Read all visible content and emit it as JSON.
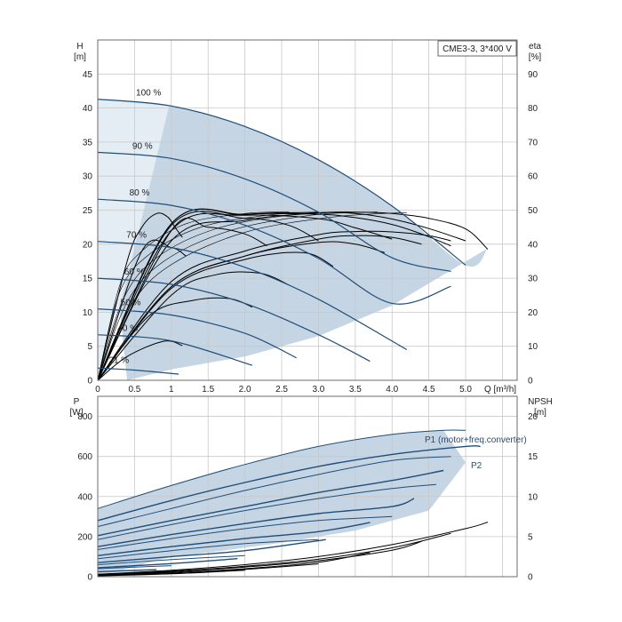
{
  "chart_data": [
    {
      "type": "line",
      "id": "qh",
      "legend": "CME3-3, 3*400 V",
      "ylabel_left": "H",
      "ylabel_left_unit": "[m]",
      "ylabel_right": "eta",
      "ylabel_right_unit": "[%]",
      "xlabel": "Q [m³/h]",
      "xlim": [
        0,
        5.7
      ],
      "ylim_left": [
        0,
        50
      ],
      "ylim_right": [
        0,
        100
      ],
      "xticks": [
        0,
        0.5,
        1.0,
        1.5,
        2.0,
        2.5,
        3.0,
        3.5,
        4.0,
        4.5,
        5.0
      ],
      "xtick_labels": [
        "0",
        "0.5",
        "1",
        "1.5",
        "2.0",
        "2.5",
        "3.0",
        "3.5",
        "4.0",
        "4.5",
        "5.0"
      ],
      "yticks_left": [
        0,
        5,
        10,
        15,
        20,
        25,
        30,
        35,
        40,
        45
      ],
      "yticks_right": [
        0,
        10,
        20,
        30,
        40,
        50,
        60,
        70,
        80,
        90
      ],
      "grid": true,
      "colors": {
        "curve": "#1f4e79",
        "eta": "#000000",
        "area": "#c5d5e4",
        "grid": "#c8c8c8"
      },
      "speed_curves": [
        {
          "label": "100 %",
          "x": [
            0,
            1.0,
            2.0,
            3.0,
            4.0,
            5.0,
            5.3
          ],
          "y": [
            41.3,
            40.3,
            37.3,
            32.4,
            25.6,
            16.9,
            19.4
          ]
        },
        {
          "label": "90 %",
          "x": [
            0,
            1.0,
            2.0,
            3.0,
            4.0,
            4.8
          ],
          "y": [
            33.5,
            32.6,
            29.6,
            24.7,
            18.0,
            16.0
          ]
        },
        {
          "label": "80 %",
          "x": [
            0,
            1.0,
            2.0,
            3.0,
            4.0,
            4.8
          ],
          "y": [
            26.6,
            25.7,
            22.8,
            17.9,
            11.3,
            13.8
          ]
        },
        {
          "label": "70 %",
          "x": [
            0,
            1.0,
            2.0,
            3.0,
            4.2
          ],
          "y": [
            20.4,
            19.5,
            16.6,
            11.9,
            4.5
          ]
        },
        {
          "label": "60 %",
          "x": [
            0,
            1.0,
            2.0,
            3.0,
            3.7
          ],
          "y": [
            15.0,
            14.1,
            11.3,
            6.7,
            2.8
          ]
        },
        {
          "label": "50 %",
          "x": [
            0,
            1.0,
            2.0,
            2.7
          ],
          "y": [
            10.5,
            9.6,
            6.9,
            3.3
          ]
        },
        {
          "label": "40 %",
          "x": [
            0,
            1.0,
            2.1
          ],
          "y": [
            6.7,
            5.8,
            2.2
          ]
        },
        {
          "label": "21 %",
          "x": [
            0,
            0.5,
            1.1
          ],
          "y": [
            1.8,
            1.5,
            0.9
          ]
        }
      ],
      "operating_area": {
        "x": [
          0,
          0.97,
          5.3,
          5.3,
          4.0,
          3.0,
          2.0,
          1.0,
          0.4
        ],
        "y": [
          41.3,
          40.3,
          19.4,
          19.4,
          11.0,
          6.5,
          3.5,
          1.6,
          0
        ]
      },
      "eta_curves": [
        {
          "x": [
            0,
            0.4,
            0.6,
            0.8,
            0.95,
            1.05,
            1.15
          ],
          "y": [
            0,
            35,
            45,
            49,
            48,
            45,
            42
          ]
        },
        {
          "x": [
            0,
            1.0,
            2.0,
            3.0,
            3.5,
            4.0,
            4.5,
            5.0,
            5.3
          ],
          "y": [
            0,
            41,
            47,
            49.2,
            49.4,
            49,
            47.6,
            44.5,
            38.5
          ]
        },
        {
          "x": [
            0,
            1.0,
            2.0,
            3.0,
            3.5,
            4.0,
            4.5,
            5.0
          ],
          "y": [
            0,
            44,
            48.6,
            49.3,
            49,
            47.4,
            44.6,
            41
          ]
        },
        {
          "x": [
            0,
            1.0,
            2.0,
            3.0,
            3.5,
            4.0,
            4.4,
            4.8
          ],
          "y": [
            0,
            46,
            48.8,
            48.8,
            47.8,
            45.8,
            43,
            39.5
          ]
        },
        {
          "x": [
            0,
            1.0,
            2.0,
            3.0,
            3.5,
            4.0
          ],
          "y": [
            0,
            46,
            48.5,
            47.5,
            44.8,
            41.5
          ]
        },
        {
          "x": [
            0,
            1.0,
            2.0,
            2.6,
            3.0
          ],
          "y": [
            0,
            45.5,
            47.6,
            45.5,
            41
          ]
        },
        {
          "x": [
            0,
            1.0,
            1.5,
            2.0,
            2.3
          ],
          "y": [
            0,
            44,
            45,
            43,
            39.5
          ]
        },
        {
          "x": [
            0,
            0.6,
            1.0,
            1.2
          ],
          "y": [
            0,
            38,
            39,
            36.5
          ]
        },
        {
          "x": [
            0,
            1.0,
            2.0,
            3.0,
            3.5,
            4.0,
            4.5,
            4.8
          ],
          "y": [
            0,
            29,
            38,
            42.8,
            43.7,
            43.6,
            42.5,
            41
          ]
        },
        {
          "x": [
            0,
            1.0,
            2.0,
            3.0,
            3.5,
            4.0,
            4.4
          ],
          "y": [
            0,
            27.5,
            36.5,
            41.5,
            42.5,
            42,
            40
          ]
        },
        {
          "x": [
            0,
            1.0,
            2.0,
            3.0,
            3.5,
            3.9
          ],
          "y": [
            0,
            27.5,
            36.5,
            40.5,
            40,
            37.5
          ]
        },
        {
          "x": [
            0,
            1.0,
            2.0,
            2.8,
            3.2
          ],
          "y": [
            0,
            27,
            35.5,
            37.5,
            33.5
          ]
        },
        {
          "x": [
            0,
            1.0,
            1.6,
            2.2,
            2.6
          ],
          "y": [
            0,
            25,
            31,
            31.5,
            28
          ]
        },
        {
          "x": [
            0,
            0.7,
            1.3,
            1.8,
            2.1
          ],
          "y": [
            0,
            19,
            23.5,
            24,
            21.5
          ]
        },
        {
          "x": [
            0,
            0.4,
            0.9,
            1.15
          ],
          "y": [
            0,
            7,
            11.5,
            10.2
          ]
        }
      ],
      "eta_fan": [
        {
          "x": [
            0,
            0.3,
            0.6,
            1.2,
            2.0,
            2.6
          ],
          "y": [
            0,
            28,
            38,
            46,
            49,
            49.5
          ]
        },
        {
          "x": [
            0,
            0.3,
            0.7,
            1.4,
            2.3,
            3.0
          ],
          "y": [
            0,
            26,
            37,
            45,
            48.5,
            49.5
          ]
        },
        {
          "x": [
            0,
            0.35,
            0.8,
            1.6,
            2.6,
            3.4
          ],
          "y": [
            0,
            24,
            36,
            44.5,
            48.5,
            49.5
          ]
        },
        {
          "x": [
            0,
            0.4,
            0.9,
            1.8,
            2.9,
            3.8
          ],
          "y": [
            0,
            23,
            35,
            44,
            48.5,
            49.5
          ]
        },
        {
          "x": [
            0,
            0.45,
            1.0,
            2.0,
            3.2,
            4.2
          ],
          "y": [
            0,
            22,
            34,
            43.5,
            48,
            49.3
          ]
        }
      ]
    },
    {
      "type": "line",
      "id": "power",
      "ylabel_left": "P",
      "ylabel_left_unit": "[W]",
      "ylabel_right": "NPSH",
      "ylabel_right_unit": "[m]",
      "xlim": [
        0,
        5.7
      ],
      "ylim_left": [
        0,
        900
      ],
      "ylim_right": [
        0,
        22.5
      ],
      "yticks_left": [
        0,
        200,
        400,
        600,
        800
      ],
      "yticks_right": [
        0,
        5,
        10,
        15,
        20
      ],
      "grid": true,
      "labels": {
        "p1": "P1 (motor+freq.converter)",
        "p2": "P2"
      },
      "colors": {
        "curve": "#1f4e79",
        "npsh": "#000000",
        "area": "#c5d5e4"
      },
      "operating_area": {
        "x": [
          0,
          0.97,
          3.0,
          4.7,
          5.0,
          4.5,
          3.5,
          2.5,
          1.5,
          1.0,
          0
        ],
        "y": [
          340,
          460,
          660,
          730,
          570,
          330,
          230,
          170,
          120,
          100,
          0
        ]
      },
      "p1_curves": [
        {
          "x": [
            0,
            1.0,
            2.0,
            3.0,
            4.0,
            4.7,
            5.0
          ],
          "y": [
            340,
            455,
            560,
            650,
            710,
            730,
            730
          ]
        },
        {
          "x": [
            0,
            1.0,
            2.0,
            3.0,
            4.0,
            4.8
          ],
          "y": [
            250,
            340,
            430,
            510,
            580,
            600
          ]
        },
        {
          "x": [
            0,
            1.0,
            2.0,
            3.0,
            4.0,
            4.6
          ],
          "y": [
            185,
            260,
            330,
            390,
            440,
            460
          ]
        },
        {
          "x": [
            0,
            1.0,
            2.0,
            3.0,
            4.0
          ],
          "y": [
            135,
            190,
            240,
            280,
            300
          ]
        },
        {
          "x": [
            0,
            1.0,
            2.0,
            3.0
          ],
          "y": [
            90,
            130,
            165,
            185
          ]
        },
        {
          "x": [
            0,
            1.0,
            2.0
          ],
          "y": [
            60,
            85,
            105
          ]
        },
        {
          "x": [
            0,
            1.0
          ],
          "y": [
            40,
            55
          ]
        }
      ],
      "p2_curves": [
        {
          "x": [
            0,
            1.0,
            2.0,
            3.0,
            4.0,
            5.0,
            5.2
          ],
          "y": [
            280,
            380,
            470,
            550,
            610,
            650,
            650
          ]
        },
        {
          "x": [
            0,
            1.0,
            2.0,
            3.0,
            4.0,
            4.7
          ],
          "y": [
            205,
            280,
            350,
            420,
            480,
            530
          ]
        },
        {
          "x": [
            0,
            1.0,
            2.0,
            3.0,
            4.0,
            4.3
          ],
          "y": [
            150,
            210,
            265,
            315,
            350,
            390
          ]
        },
        {
          "x": [
            0,
            1.0,
            2.0,
            3.0,
            3.7
          ],
          "y": [
            105,
            150,
            190,
            225,
            270
          ]
        },
        {
          "x": [
            0,
            1.0,
            2.0,
            3.1
          ],
          "y": [
            70,
            100,
            130,
            185
          ]
        },
        {
          "x": [
            0,
            1.0,
            1.9
          ],
          "y": [
            45,
            65,
            90
          ]
        },
        {
          "x": [
            0,
            0.8
          ],
          "y": [
            25,
            35
          ]
        }
      ],
      "npsh_curves": [
        {
          "x": [
            0,
            1.0,
            2.0,
            3.0,
            4.0,
            5.0,
            5.3
          ],
          "y": [
            0.3,
            0.8,
            1.5,
            2.5,
            4.0,
            6.0,
            6.8
          ]
        },
        {
          "x": [
            0,
            1.0,
            2.0,
            3.0,
            4.0,
            4.8
          ],
          "y": [
            0.3,
            0.7,
            1.3,
            2.2,
            3.6,
            5.4
          ]
        },
        {
          "x": [
            0,
            1.0,
            2.0,
            3.0,
            4.0,
            4.4
          ],
          "y": [
            0.2,
            0.6,
            1.2,
            2.0,
            3.3,
            4.4
          ]
        },
        {
          "x": [
            0,
            1.0,
            2.0,
            3.0,
            3.7
          ],
          "y": [
            0.2,
            0.5,
            1.0,
            1.8,
            3.0
          ]
        },
        {
          "x": [
            0,
            1.0,
            2.0,
            3.0
          ],
          "y": [
            0.15,
            0.4,
            0.9,
            1.6
          ]
        },
        {
          "x": [
            0,
            1.0,
            2.0
          ],
          "y": [
            0.1,
            0.35,
            0.8
          ]
        }
      ]
    }
  ]
}
